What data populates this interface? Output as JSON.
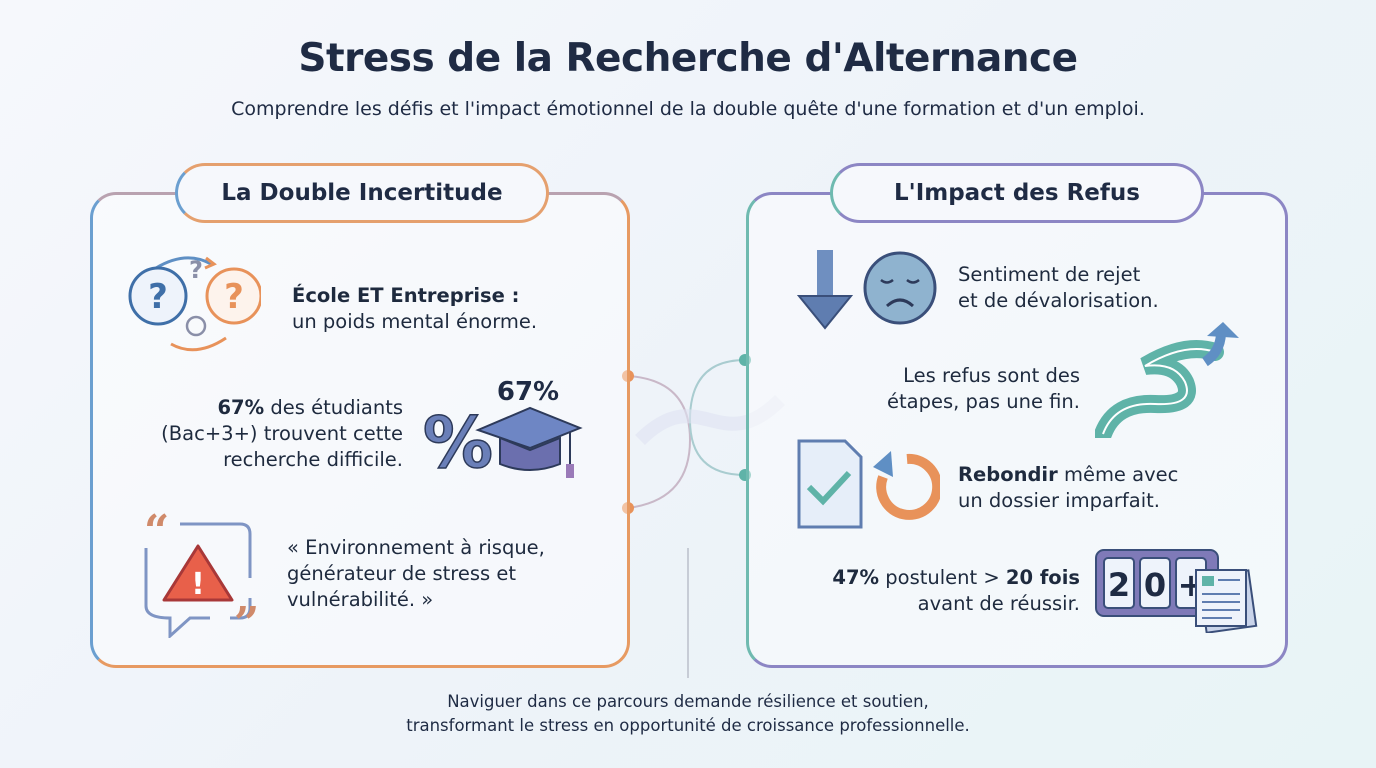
{
  "header": {
    "title": "Stress de la Recherche d'Alternance",
    "subtitle": "Comprendre les défis et l'impact émotionnel de la double quête d'une formation et d'un emploi."
  },
  "left_panel": {
    "title": "La Double Incertitude",
    "items": [
      {
        "icon": "question-bubbles-icon",
        "bold": "École ET Entreprise :",
        "text": "un poids mental énorme."
      },
      {
        "icon": "graduation-percent-icon",
        "icon_label": "67%",
        "bold": "67%",
        "text1": " des étudiants",
        "text2": "(Bac+3+) trouvent cette",
        "text3": "recherche difficile."
      },
      {
        "icon": "warning-quote-icon",
        "line1": "« Environnement à risque,",
        "line2": "générateur de stress et",
        "line3": "vulnérabilité. »"
      }
    ]
  },
  "right_panel": {
    "title": "L'Impact des Refus",
    "items": [
      {
        "icon": "sad-face-down-arrow-icon",
        "line1": "Sentiment de rejet",
        "line2": "et de dévalorisation."
      },
      {
        "icon": "winding-road-icon",
        "line1": "Les refus sont des",
        "line2": "étapes, pas une fin."
      },
      {
        "icon": "document-check-retry-icon",
        "bold": "Rebondir",
        "text1": " même avec",
        "line2": "un dossier imparfait."
      },
      {
        "icon": "counter-20-plus-icon",
        "counter": [
          "2",
          "0",
          "+"
        ],
        "bold1": "47%",
        "text1": " postulent > ",
        "bold2": "20 fois",
        "line2": "avant de réussir."
      }
    ]
  },
  "footer": {
    "line1": "Naviguer dans ce parcours demande résilience et soutien,",
    "line2": "transformant le stress en opportunité de croissance professionnelle."
  },
  "colors": {
    "orange": "#e8925a",
    "blue": "#5f8fc4",
    "teal": "#5fb3a8",
    "purple": "#8c86c4",
    "navy": "#1f2b44"
  }
}
